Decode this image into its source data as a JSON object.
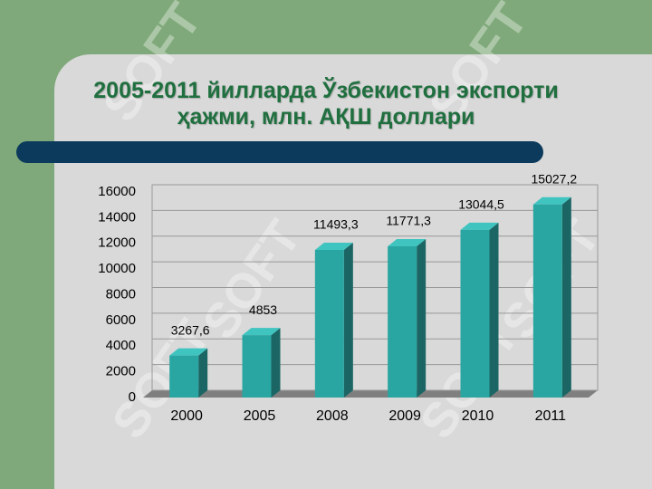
{
  "chart_data": {
    "type": "bar3d",
    "title": "2005-2011 йилларда Ўзбекистон экспорти ҳажми, млн. АҚШ доллари",
    "categories": [
      "2000",
      "2005",
      "2008",
      "2009",
      "2010",
      "2011"
    ],
    "values": [
      3267.6,
      4853,
      11493.3,
      11771.3,
      13044.5,
      15027.2
    ],
    "value_labels": [
      "3267,6",
      "4853",
      "11493,3",
      "11771,3",
      "13044,5",
      "15027,2"
    ],
    "color": "#2aa6a2",
    "ylim": [
      0,
      16000
    ],
    "yticks": [
      0,
      2000,
      4000,
      6000,
      8000,
      10000,
      12000,
      14000,
      16000
    ],
    "grid": true,
    "watermark": "SOFT"
  }
}
